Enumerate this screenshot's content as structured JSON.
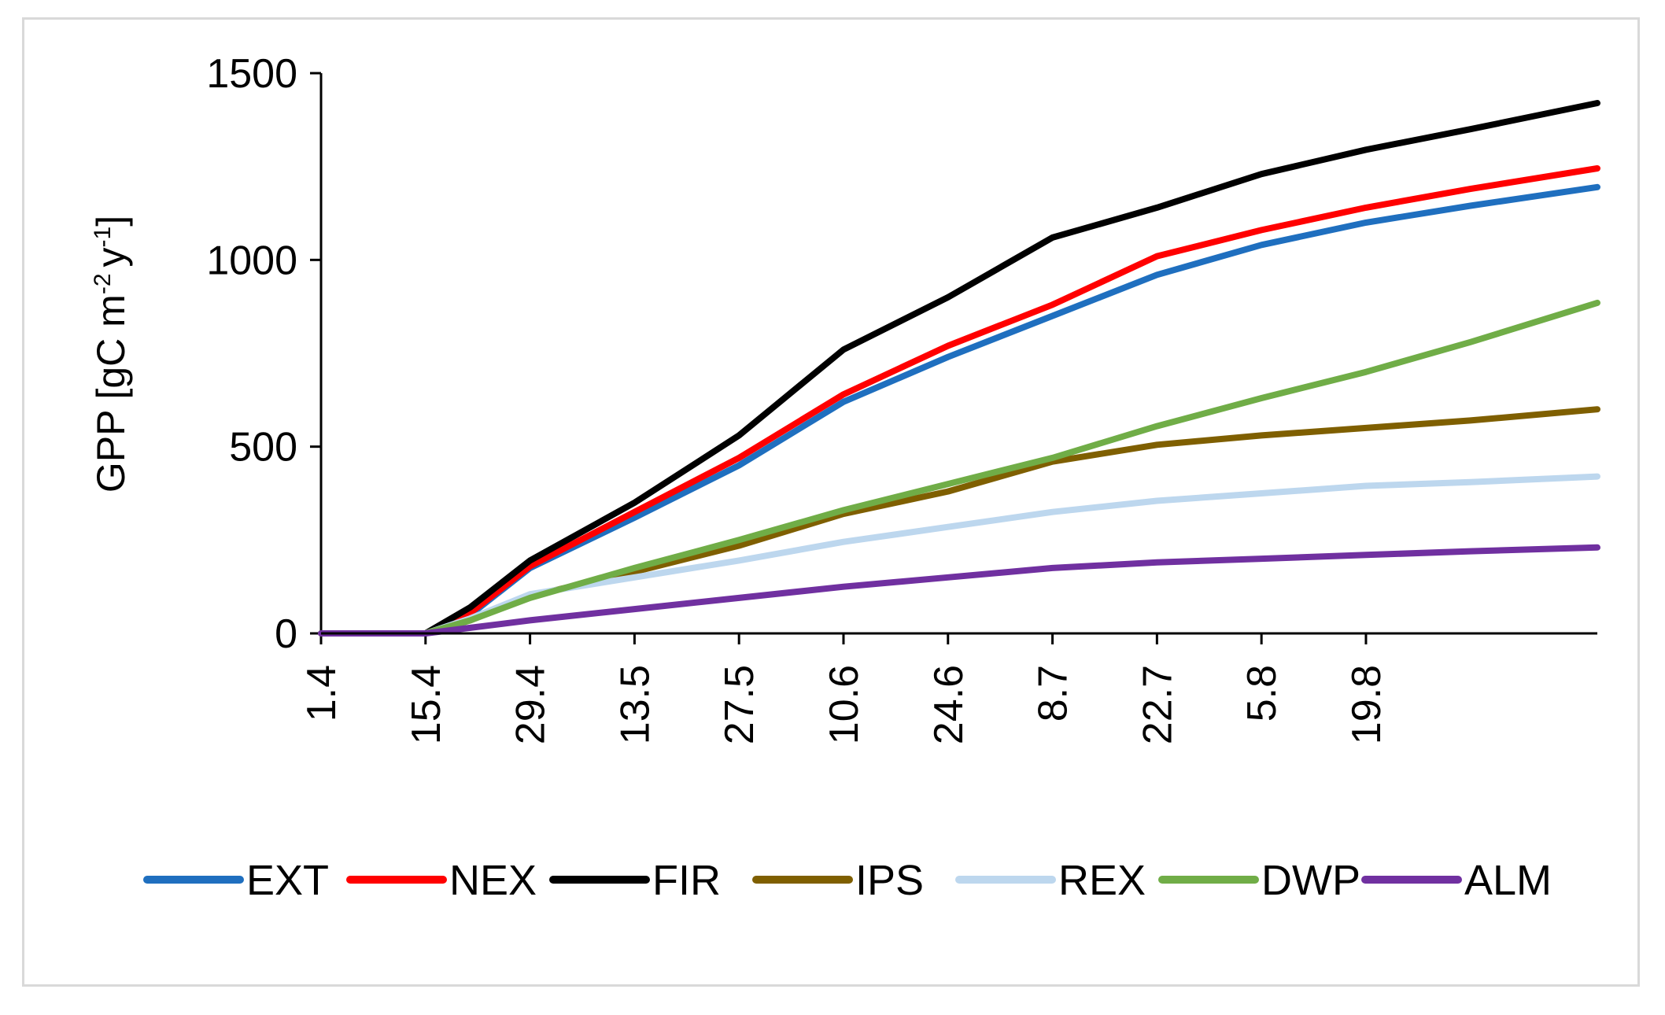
{
  "chart_data": {
    "type": "line",
    "title": "",
    "xlabel": "",
    "ylabel": "GPP [gC m-2 y-1]",
    "ylabel_parts": {
      "base": "GPP [gC m",
      "sup1": "-2",
      "mid": "y",
      "sup2": "-1",
      "end": "]"
    },
    "ylim": [
      0,
      1500
    ],
    "yticks": [
      0,
      500,
      1000,
      1500
    ],
    "x_range": [
      0,
      171
    ],
    "x_tick_positions": [
      0,
      14,
      28,
      42,
      56,
      70,
      84,
      98,
      112,
      126,
      140
    ],
    "x_tick_labels": [
      "1.4",
      "15.4",
      "29.4",
      "13.5",
      "27.5",
      "10.6",
      "24.6",
      "8.7",
      "22.7",
      "5.8",
      "19.8"
    ],
    "legend_position": "bottom",
    "series": [
      {
        "name": "EXT",
        "color": "#1f6fbf",
        "x": [
          0,
          14,
          20,
          28,
          42,
          56,
          70,
          84,
          98,
          112,
          126,
          140,
          154,
          171
        ],
        "values": [
          0,
          0,
          50,
          175,
          310,
          450,
          620,
          740,
          850,
          960,
          1040,
          1100,
          1145,
          1195
        ]
      },
      {
        "name": "NEX",
        "color": "#ff0000",
        "x": [
          0,
          14,
          20,
          28,
          42,
          56,
          70,
          84,
          98,
          112,
          126,
          140,
          154,
          171
        ],
        "values": [
          0,
          0,
          55,
          180,
          325,
          470,
          640,
          770,
          880,
          1010,
          1080,
          1140,
          1190,
          1245
        ]
      },
      {
        "name": "FIR",
        "color": "#000000",
        "x": [
          0,
          14,
          20,
          28,
          42,
          56,
          70,
          84,
          98,
          112,
          126,
          140,
          154,
          171
        ],
        "values": [
          0,
          0,
          70,
          195,
          350,
          530,
          760,
          900,
          1060,
          1140,
          1230,
          1295,
          1350,
          1420
        ]
      },
      {
        "name": "IPS",
        "color": "#7f5f00",
        "x": [
          0,
          14,
          20,
          28,
          42,
          56,
          70,
          84,
          98,
          112,
          126,
          140,
          154,
          171
        ],
        "values": [
          0,
          0,
          35,
          100,
          165,
          235,
          320,
          380,
          460,
          505,
          530,
          550,
          570,
          600
        ]
      },
      {
        "name": "REX",
        "color": "#bdd7ee",
        "x": [
          0,
          14,
          20,
          28,
          42,
          56,
          70,
          84,
          98,
          112,
          126,
          140,
          154,
          171
        ],
        "values": [
          0,
          0,
          40,
          105,
          150,
          195,
          245,
          285,
          325,
          355,
          375,
          395,
          405,
          420
        ]
      },
      {
        "name": "DWP",
        "color": "#70ad47",
        "x": [
          0,
          14,
          20,
          28,
          42,
          56,
          70,
          84,
          98,
          112,
          126,
          140,
          154,
          171
        ],
        "values": [
          0,
          0,
          35,
          95,
          175,
          250,
          330,
          400,
          470,
          555,
          630,
          700,
          780,
          885
        ]
      },
      {
        "name": "ALM",
        "color": "#7030a0",
        "x": [
          0,
          14,
          20,
          28,
          42,
          56,
          70,
          84,
          98,
          112,
          126,
          140,
          154,
          171
        ],
        "values": [
          0,
          0,
          15,
          35,
          65,
          95,
          125,
          150,
          175,
          190,
          200,
          210,
          220,
          230
        ]
      }
    ]
  }
}
